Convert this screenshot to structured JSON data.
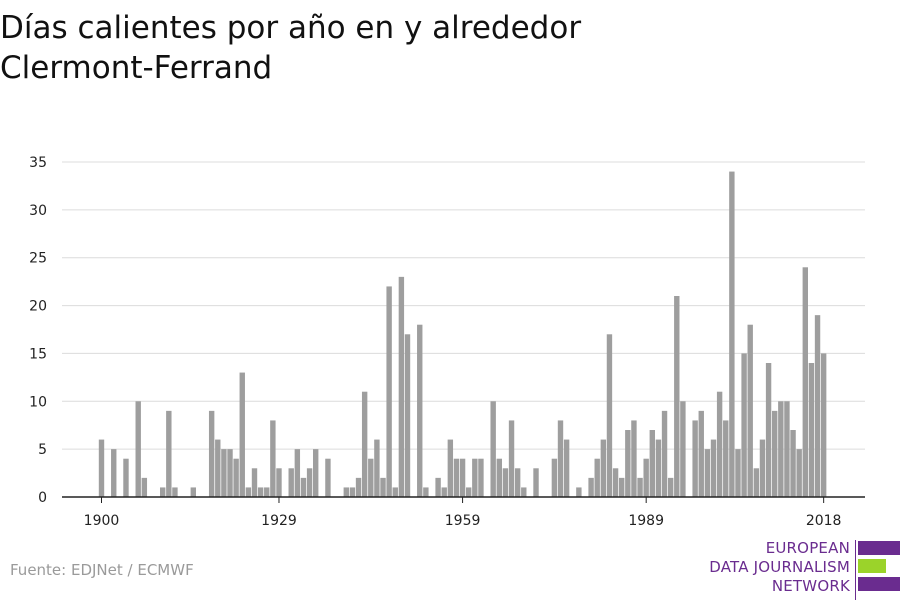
{
  "title_line1": "Días calientes por año en y alrededor",
  "title_line2": "Clermont-Ferrand",
  "source": "Fuente: EDJNet / ECMWF",
  "logo": {
    "line1": "EUROPEAN",
    "line2": "DATA JOURNALISM",
    "line3": "NETWORK",
    "colors": [
      "#6a2c8f",
      "#9bd32a",
      "#6a2c8f"
    ]
  },
  "colors": {
    "bar": "#9e9e9e",
    "grid": "#dcdcdc",
    "axis": "#222222",
    "text": "#222222"
  },
  "chart_data": {
    "type": "bar",
    "title": "Días calientes por año en y alrededor Clermont-Ferrand",
    "xlabel": "",
    "ylabel": "",
    "x_ticks": [
      1900,
      1929,
      1959,
      1989,
      2018
    ],
    "y_ticks": [
      0,
      5,
      10,
      15,
      20,
      25,
      30,
      35
    ],
    "ylim": [
      0,
      35
    ],
    "xlim": [
      1894,
      2024
    ],
    "grid": true,
    "legend": "none",
    "x": [
      1900,
      1901,
      1902,
      1903,
      1904,
      1905,
      1906,
      1907,
      1908,
      1909,
      1910,
      1911,
      1912,
      1913,
      1914,
      1915,
      1916,
      1917,
      1918,
      1919,
      1920,
      1921,
      1922,
      1923,
      1924,
      1925,
      1926,
      1927,
      1928,
      1929,
      1930,
      1931,
      1932,
      1933,
      1934,
      1935,
      1936,
      1937,
      1938,
      1939,
      1940,
      1941,
      1942,
      1943,
      1944,
      1945,
      1946,
      1947,
      1948,
      1949,
      1950,
      1951,
      1952,
      1953,
      1954,
      1955,
      1956,
      1957,
      1958,
      1959,
      1960,
      1961,
      1962,
      1963,
      1964,
      1965,
      1966,
      1967,
      1968,
      1969,
      1970,
      1971,
      1972,
      1973,
      1974,
      1975,
      1976,
      1977,
      1978,
      1979,
      1980,
      1981,
      1982,
      1983,
      1984,
      1985,
      1986,
      1987,
      1988,
      1989,
      1990,
      1991,
      1992,
      1993,
      1994,
      1995,
      1996,
      1997,
      1998,
      1999,
      2000,
      2001,
      2002,
      2003,
      2004,
      2005,
      2006,
      2007,
      2008,
      2009,
      2010,
      2011,
      2012,
      2013,
      2014,
      2015,
      2016,
      2017,
      2018
    ],
    "values": [
      6,
      0,
      5,
      0,
      4,
      0,
      10,
      2,
      0,
      0,
      1,
      9,
      1,
      0,
      0,
      1,
      0,
      0,
      9,
      6,
      5,
      5,
      4,
      13,
      1,
      3,
      1,
      1,
      8,
      3,
      0,
      3,
      5,
      2,
      3,
      5,
      0,
      4,
      0,
      0,
      1,
      1,
      2,
      11,
      4,
      6,
      2,
      22,
      1,
      23,
      17,
      0,
      18,
      1,
      0,
      2,
      1,
      6,
      4,
      4,
      1,
      4,
      4,
      0,
      10,
      4,
      3,
      8,
      3,
      1,
      0,
      3,
      0,
      0,
      4,
      8,
      6,
      0,
      1,
      0,
      2,
      4,
      6,
      17,
      3,
      2,
      7,
      8,
      2,
      4,
      7,
      6,
      9,
      2,
      21,
      10,
      0,
      8,
      9,
      5,
      6,
      11,
      8,
      34,
      5,
      15,
      18,
      3,
      6,
      14,
      9,
      10,
      10,
      7,
      5,
      24,
      14,
      19,
      15
    ]
  }
}
